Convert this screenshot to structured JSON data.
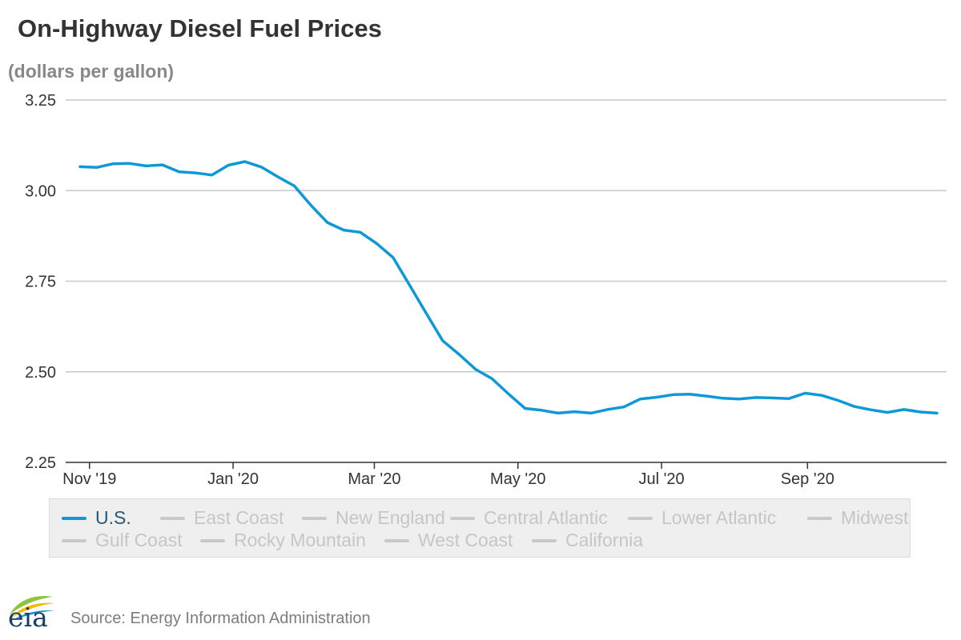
{
  "header": {
    "title": "On-Highway Diesel Fuel Prices",
    "unit": "(dollars per gallon)"
  },
  "legend": {
    "row1": [
      "U.S.",
      "East Coast",
      "New England",
      "Central Atlantic",
      "Lower Atlantic",
      "Midwest"
    ],
    "row2": [
      "Gulf Coast",
      "Rocky Mountain",
      "West Coast",
      "California"
    ],
    "active": "U.S."
  },
  "footer": {
    "source": "Source: Energy Information Administration",
    "logo_text": "eia"
  },
  "colors": {
    "series": "#0f98d8",
    "inactive_legend": "#c9c9c9",
    "grid": "#c8c8c8",
    "axis": "#333333",
    "logo_leaf_green": "#8cc63f",
    "logo_leaf_yellow": "#f5b700",
    "logo_leaf_blue": "#1f8fd1"
  },
  "chart_data": {
    "type": "line",
    "title": "On-Highway Diesel Fuel Prices",
    "ylabel": "(dollars per gallon)",
    "xlabel": "",
    "ylim": [
      2.25,
      3.25
    ],
    "xlim": [
      "2019-10-28",
      "2020-10-26"
    ],
    "yticks": [
      "3.25",
      "3.00",
      "2.75",
      "2.50",
      "2.25"
    ],
    "xticks": [
      {
        "date": "2019-11-01",
        "label": "Nov '19"
      },
      {
        "date": "2020-01-01",
        "label": "Jan '20"
      },
      {
        "date": "2020-03-01",
        "label": "Mar '20"
      },
      {
        "date": "2020-05-01",
        "label": "May '20"
      },
      {
        "date": "2020-07-01",
        "label": "Jul '20"
      },
      {
        "date": "2020-09-01",
        "label": "Sep '20"
      }
    ],
    "grid": true,
    "legend_position": "bottom",
    "series": [
      {
        "name": "U.S.",
        "points": [
          [
            "2019-10-28",
            3.066
          ],
          [
            "2019-11-04",
            3.064
          ],
          [
            "2019-11-11",
            3.074
          ],
          [
            "2019-11-18",
            3.075
          ],
          [
            "2019-11-25",
            3.068
          ],
          [
            "2019-12-02",
            3.071
          ],
          [
            "2019-12-09",
            3.052
          ],
          [
            "2019-12-16",
            3.049
          ],
          [
            "2019-12-23",
            3.043
          ],
          [
            "2019-12-30",
            3.07
          ],
          [
            "2020-01-06",
            3.08
          ],
          [
            "2020-01-13",
            3.065
          ],
          [
            "2020-01-20",
            3.038
          ],
          [
            "2020-01-27",
            3.013
          ],
          [
            "2020-02-03",
            2.96
          ],
          [
            "2020-02-10",
            2.912
          ],
          [
            "2020-02-17",
            2.891
          ],
          [
            "2020-02-24",
            2.885
          ],
          [
            "2020-03-02",
            2.854
          ],
          [
            "2020-03-09",
            2.815
          ],
          [
            "2020-03-16",
            2.739
          ],
          [
            "2020-03-23",
            2.662
          ],
          [
            "2020-03-30",
            2.586
          ],
          [
            "2020-04-06",
            2.548
          ],
          [
            "2020-04-13",
            2.507
          ],
          [
            "2020-04-20",
            2.481
          ],
          [
            "2020-04-27",
            2.439
          ],
          [
            "2020-05-04",
            2.399
          ],
          [
            "2020-05-11",
            2.394
          ],
          [
            "2020-05-18",
            2.386
          ],
          [
            "2020-05-25",
            2.39
          ],
          [
            "2020-06-01",
            2.386
          ],
          [
            "2020-06-08",
            2.396
          ],
          [
            "2020-06-15",
            2.403
          ],
          [
            "2020-06-22",
            2.425
          ],
          [
            "2020-06-29",
            2.43
          ],
          [
            "2020-07-06",
            2.437
          ],
          [
            "2020-07-13",
            2.438
          ],
          [
            "2020-07-20",
            2.433
          ],
          [
            "2020-07-27",
            2.427
          ],
          [
            "2020-08-03",
            2.425
          ],
          [
            "2020-08-10",
            2.429
          ],
          [
            "2020-08-17",
            2.428
          ],
          [
            "2020-08-24",
            2.426
          ],
          [
            "2020-08-31",
            2.441
          ],
          [
            "2020-09-07",
            2.435
          ],
          [
            "2020-09-14",
            2.421
          ],
          [
            "2020-09-21",
            2.404
          ],
          [
            "2020-09-28",
            2.395
          ],
          [
            "2020-10-05",
            2.388
          ],
          [
            "2020-10-12",
            2.396
          ],
          [
            "2020-10-19",
            2.389
          ],
          [
            "2020-10-26",
            2.386
          ]
        ]
      }
    ]
  }
}
